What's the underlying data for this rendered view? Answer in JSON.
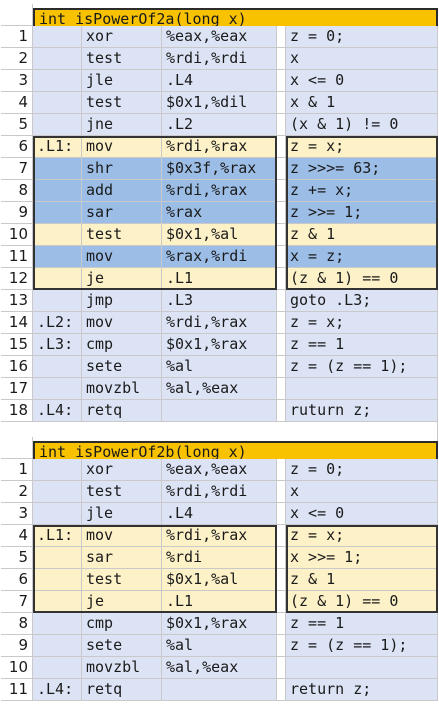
{
  "block_a": {
    "title": "int isPowerOf2a(long x)",
    "rows": [
      {
        "n": "1",
        "label": "",
        "op": "xor",
        "args": "%eax,%eax",
        "comment": "z = 0;",
        "style": "plain"
      },
      {
        "n": "2",
        "label": "",
        "op": "test",
        "args": "%rdi,%rdi",
        "comment": "x",
        "style": "plain"
      },
      {
        "n": "3",
        "label": "",
        "op": "jle",
        "args": ".L4",
        "comment": "x <= 0",
        "style": "plain"
      },
      {
        "n": "4",
        "label": "",
        "op": "test",
        "args": "$0x1,%dil",
        "comment": "x & 1",
        "style": "plain"
      },
      {
        "n": "5",
        "label": "",
        "op": "jne",
        "args": ".L2",
        "comment": "(x & 1) != 0",
        "style": "plain"
      },
      {
        "n": "6",
        "label": ".L1:",
        "op": "mov",
        "args": "%rdi,%rax",
        "comment": "z = x;",
        "style": "yellow"
      },
      {
        "n": "7",
        "label": "",
        "op": "shr",
        "args": "$0x3f,%rax",
        "comment": "z >>>= 63;",
        "style": "blue"
      },
      {
        "n": "8",
        "label": "",
        "op": "add",
        "args": "%rdi,%rax",
        "comment": "z += x;",
        "style": "blue"
      },
      {
        "n": "9",
        "label": "",
        "op": "sar",
        "args": "%rax",
        "comment": "z >>= 1;",
        "style": "blue"
      },
      {
        "n": "10",
        "label": "",
        "op": "test",
        "args": "$0x1,%al",
        "comment": "z & 1",
        "style": "yellow"
      },
      {
        "n": "11",
        "label": "",
        "op": "mov",
        "args": "%rax,%rdi",
        "comment": "x = z;",
        "style": "blue"
      },
      {
        "n": "12",
        "label": "",
        "op": "je",
        "args": ".L1",
        "comment": "(z & 1) == 0",
        "style": "yellow"
      },
      {
        "n": "13",
        "label": "",
        "op": "jmp",
        "args": ".L3",
        "comment": "goto .L3;",
        "style": "plain"
      },
      {
        "n": "14",
        "label": ".L2:",
        "op": "mov",
        "args": "%rdi,%rax",
        "comment": "z = x;",
        "style": "plain"
      },
      {
        "n": "15",
        "label": ".L3:",
        "op": "cmp",
        "args": "$0x1,%rax",
        "comment": "z == 1",
        "style": "plain"
      },
      {
        "n": "16",
        "label": "",
        "op": "sete",
        "args": "%al",
        "comment": "z = (z == 1);",
        "style": "plain"
      },
      {
        "n": "17",
        "label": "",
        "op": "movzbl",
        "args": "%al,%eax",
        "comment": "",
        "style": "plain"
      },
      {
        "n": "18",
        "label": ".L4:",
        "op": "retq",
        "args": "",
        "comment": "ruturn z;",
        "style": "plain"
      }
    ]
  },
  "block_b": {
    "title": "int isPowerOf2b(long x)",
    "rows": [
      {
        "n": "1",
        "label": "",
        "op": "xor",
        "args": "%eax,%eax",
        "comment": "z = 0;",
        "style": "plain"
      },
      {
        "n": "2",
        "label": "",
        "op": "test",
        "args": "%rdi,%rdi",
        "comment": "x",
        "style": "plain"
      },
      {
        "n": "3",
        "label": "",
        "op": "jle",
        "args": ".L4",
        "comment": "x <= 0",
        "style": "plain"
      },
      {
        "n": "4",
        "label": ".L1:",
        "op": "mov",
        "args": "%rdi,%rax",
        "comment": "z = x;",
        "style": "yellow"
      },
      {
        "n": "5",
        "label": "",
        "op": "sar",
        "args": "%rdi",
        "comment": "x >>= 1;",
        "style": "yellow"
      },
      {
        "n": "6",
        "label": "",
        "op": "test",
        "args": "$0x1,%al",
        "comment": "z & 1",
        "style": "yellow"
      },
      {
        "n": "7",
        "label": "",
        "op": "je",
        "args": ".L1",
        "comment": "(z & 1) == 0",
        "style": "yellow"
      },
      {
        "n": "8",
        "label": "",
        "op": "cmp",
        "args": "$0x1,%rax",
        "comment": "z == 1",
        "style": "plain"
      },
      {
        "n": "9",
        "label": "",
        "op": "sete",
        "args": "%al",
        "comment": "z = (z == 1);",
        "style": "plain"
      },
      {
        "n": "10",
        "label": "",
        "op": "movzbl",
        "args": "%al,%eax",
        "comment": "",
        "style": "plain"
      },
      {
        "n": "11",
        "label": ".L4:",
        "op": "retq",
        "args": "",
        "comment": "return z;",
        "style": "plain"
      }
    ]
  },
  "colors": {
    "title_fill": "#f8c200",
    "row_default": "#dbe3f5",
    "row_yellow": "#fdf1c8",
    "row_blue": "#9cbde6",
    "box_border": "#333333"
  }
}
